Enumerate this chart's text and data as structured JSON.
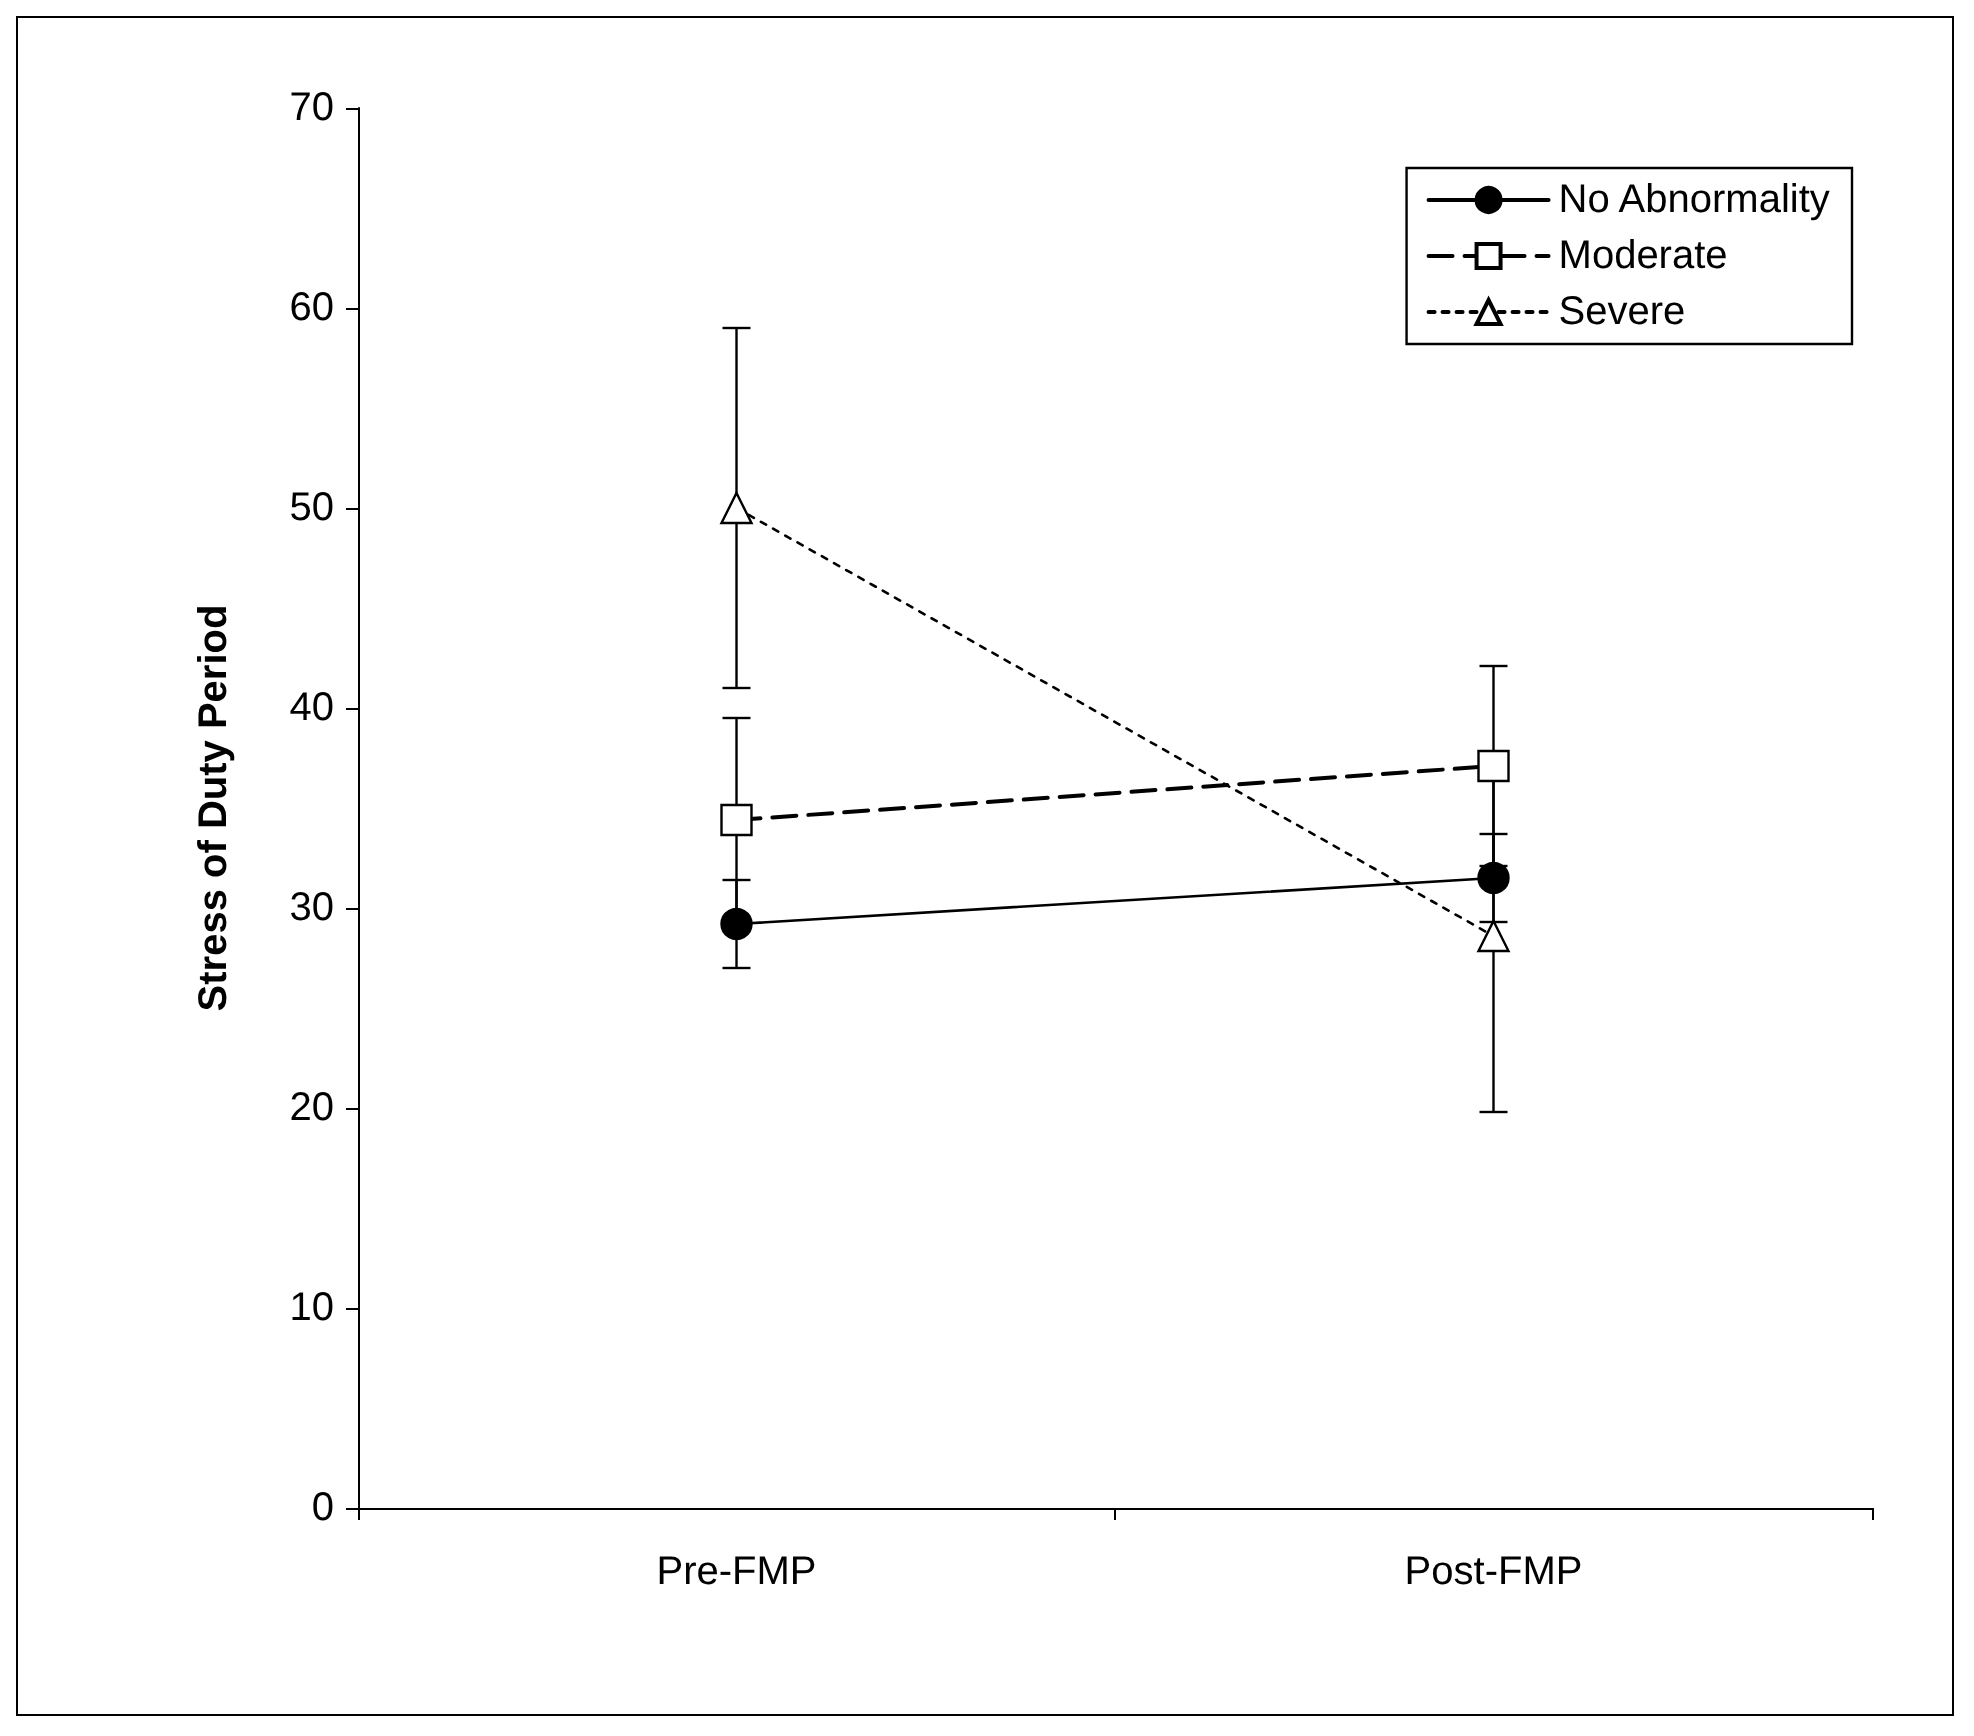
{
  "chart_data": {
    "type": "line",
    "ylabel": "Stress of Duty Period",
    "categories": [
      "Pre-FMP",
      "Post-FMP"
    ],
    "ylim": [
      0,
      70
    ],
    "yticks": [
      0,
      10,
      20,
      30,
      40,
      50,
      60,
      70
    ],
    "grid": false,
    "legend": "top right",
    "series": [
      {
        "name": "No Abnormality",
        "color": "#000000",
        "values": [
          29.2,
          31.5
        ],
        "errors": [
          2.2,
          2.2
        ],
        "marker": "circle",
        "line_style": "solid"
      },
      {
        "name": "Moderate",
        "color": "#000000",
        "values": [
          34.4,
          37.1
        ],
        "errors": [
          5.1,
          5
        ],
        "marker": "square",
        "line_style": "dashed"
      },
      {
        "name": "Severe",
        "color": "#000000",
        "values": [
          50,
          28.6
        ],
        "errors": [
          9,
          8.8
        ],
        "marker": "triangle",
        "line_style": "dotted"
      }
    ]
  }
}
